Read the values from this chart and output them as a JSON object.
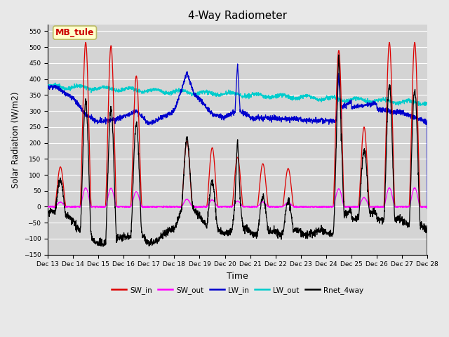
{
  "title": "4-Way Radiometer",
  "xlabel": "Time",
  "ylabel": "Solar Radiation (W/m2)",
  "ylim": [
    -150,
    570
  ],
  "yticks": [
    -150,
    -100,
    -50,
    0,
    50,
    100,
    150,
    200,
    250,
    300,
    350,
    400,
    450,
    500,
    550
  ],
  "background_color": "#e8e8e8",
  "plot_bg_color": "#d4d4d4",
  "annotation_text": "MB_tule",
  "annotation_color": "#cc0000",
  "annotation_bg": "#ffffcc",
  "annotation_border": "#bbbb66",
  "colors": {
    "SW_in": "#dd0000",
    "SW_out": "#ff00ff",
    "LW_in": "#0000cc",
    "LW_out": "#00cccc",
    "Rnet_4way": "#000000"
  },
  "x_start": 13,
  "x_end": 28,
  "x_ticks": [
    13,
    14,
    15,
    16,
    17,
    18,
    19,
    20,
    21,
    22,
    23,
    24,
    25,
    26,
    27,
    28
  ],
  "x_tick_labels": [
    "Dec 13",
    "Dec 14",
    "Dec 15",
    "Dec 16",
    "Dec 17",
    "Dec 18",
    "Dec 19",
    "Dec 20",
    "Dec 21",
    "Dec 22",
    "Dec 23",
    "Dec 24",
    "Dec 25",
    "Dec 26",
    "Dec 27",
    "Dec 28"
  ],
  "figsize": [
    6.4,
    4.8
  ],
  "dpi": 100
}
